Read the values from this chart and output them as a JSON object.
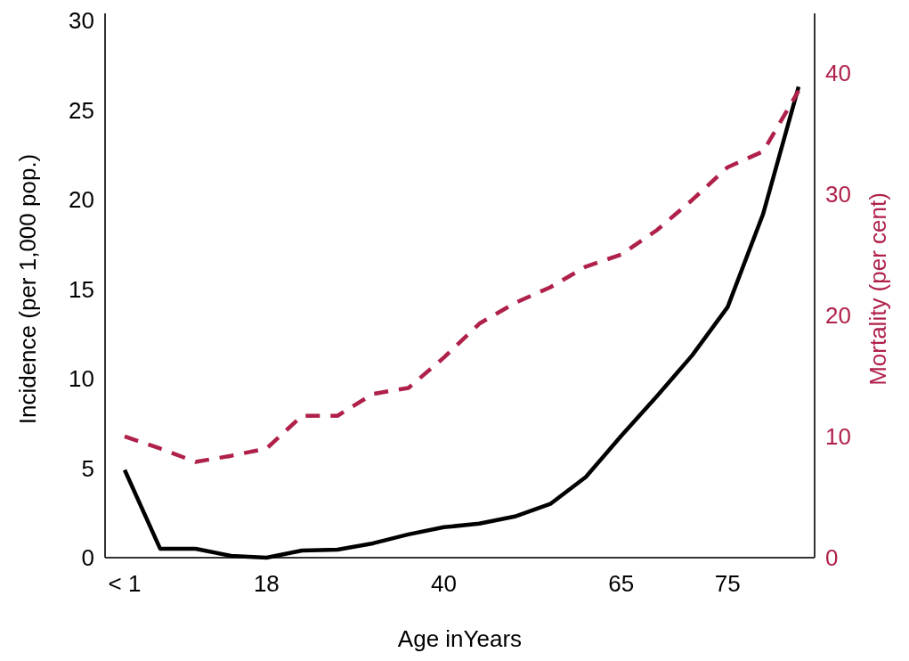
{
  "chart_data": {
    "type": "line",
    "xlabel": "Age inYears",
    "ylabel": "Incidence (per 1,000 pop.)",
    "y2label": "Mortality (per cent)",
    "categories": [
      "< 1",
      null,
      null,
      null,
      "18",
      null,
      null,
      null,
      null,
      "40",
      null,
      null,
      null,
      null,
      "65",
      null,
      null,
      "75",
      null,
      null
    ],
    "series": [
      {
        "color": "#000000",
        "line_style": "solid",
        "values": [
          4.9,
          0.5,
          0.5,
          0.1,
          0,
          0.4,
          0.45,
          0.8,
          1.3,
          1.7,
          1.9,
          2.3,
          3.0,
          4.5,
          6.8,
          9.0,
          11.3,
          14.0,
          19.2,
          26.3
        ]
      },
      {
        "color": "#b0214a",
        "line_style": "dashed",
        "axis": "y2",
        "values": [
          10.0,
          9.0,
          7.9,
          8.4,
          9.0,
          11.7,
          11.7,
          13.5,
          14.0,
          16.5,
          19.3,
          21.0,
          22.3,
          24.0,
          25.0,
          27.0,
          29.5,
          32.2,
          33.5,
          38.5
        ]
      }
    ],
    "ylim": [
      0,
      30
    ],
    "yticks": [
      0,
      5,
      10,
      15,
      20,
      25,
      30
    ],
    "y2lim": [
      0,
      44.3
    ],
    "y2ticks": [
      0,
      10,
      20,
      30,
      40
    ]
  }
}
